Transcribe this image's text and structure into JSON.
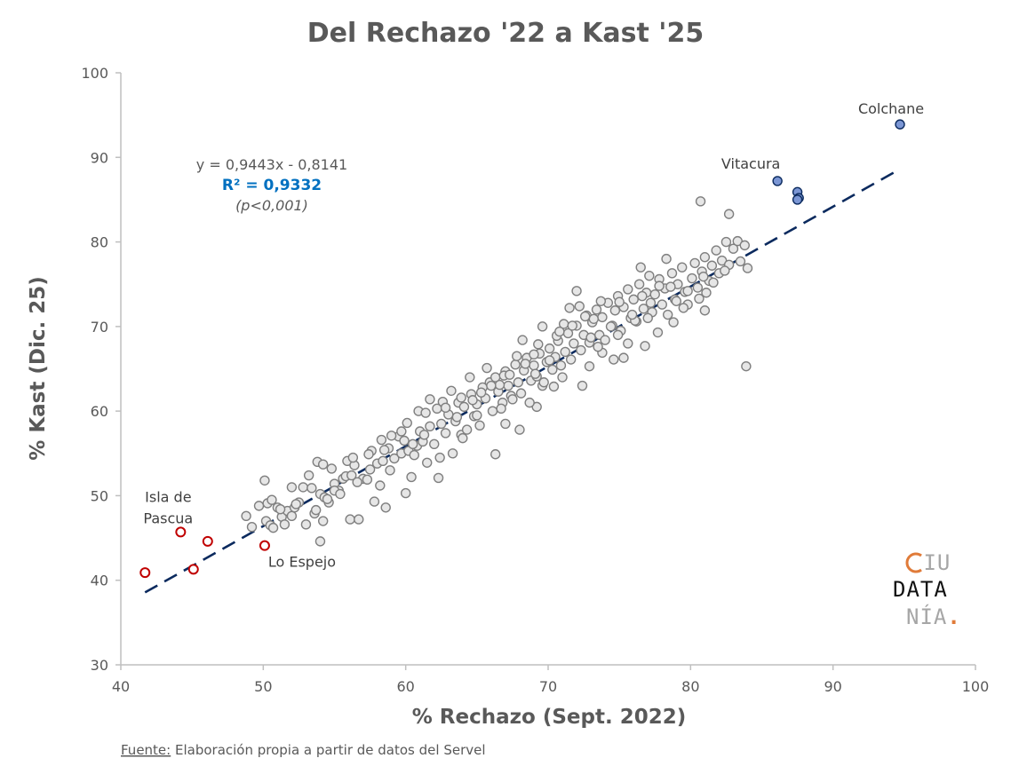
{
  "chart_data": {
    "type": "scatter",
    "title": "Del Rechazo '22 a Kast '25",
    "xlabel": "% Rechazo (Sept. 2022)",
    "ylabel": "% Kast (Dic. 25)",
    "xlim": [
      40,
      100
    ],
    "ylim": [
      30,
      100
    ],
    "xticks": [
      "40",
      "50",
      "60",
      "70",
      "80",
      "90",
      "100"
    ],
    "yticks": [
      "30",
      "40",
      "50",
      "60",
      "70",
      "80",
      "90",
      "100"
    ],
    "grid": false,
    "trendline": {
      "slope": 0.9443,
      "intercept": -0.8141,
      "x_range": [
        41.7,
        94.7
      ],
      "style": "dashed",
      "color": "#0b2a5e",
      "equation_label": "y = 0,9443x - 0,8141",
      "r2_label": "R² = 0,9332",
      "p_label": "(p<0,001)"
    },
    "series": [
      {
        "style": "grey",
        "fill": "#e6e6e6",
        "stroke": "#7f7f7f",
        "points": [
          [
            48.8,
            47.6
          ],
          [
            49.2,
            46.3
          ],
          [
            49.7,
            48.8
          ],
          [
            50.1,
            51.8
          ],
          [
            50.3,
            49.1
          ],
          [
            50.6,
            49.5
          ],
          [
            50.2,
            47.0
          ],
          [
            50.5,
            46.5
          ],
          [
            51.0,
            48.6
          ],
          [
            51.3,
            47.5
          ],
          [
            51.5,
            46.6
          ],
          [
            51.7,
            48.2
          ],
          [
            52.0,
            47.6
          ],
          [
            52.2,
            48.6
          ],
          [
            52.5,
            49.2
          ],
          [
            52.8,
            51.0
          ],
          [
            52.3,
            49.0
          ],
          [
            53.0,
            46.6
          ],
          [
            53.4,
            50.9
          ],
          [
            53.6,
            47.9
          ],
          [
            53.8,
            54.0
          ],
          [
            54.0,
            50.2
          ],
          [
            54.3,
            49.8
          ],
          [
            54.2,
            47.0
          ],
          [
            54.0,
            44.6
          ],
          [
            54.6,
            49.2
          ],
          [
            54.8,
            53.2
          ],
          [
            55.0,
            51.4
          ],
          [
            55.3,
            50.6
          ],
          [
            55.6,
            52.0
          ],
          [
            55.9,
            54.1
          ],
          [
            56.1,
            47.2
          ],
          [
            56.4,
            53.6
          ],
          [
            56.7,
            47.2
          ],
          [
            57.0,
            52.0
          ],
          [
            57.3,
            51.9
          ],
          [
            57.6,
            55.3
          ],
          [
            57.8,
            49.3
          ],
          [
            58.0,
            53.8
          ],
          [
            58.2,
            51.2
          ],
          [
            58.4,
            54.1
          ],
          [
            58.6,
            48.6
          ],
          [
            58.9,
            53.0
          ],
          [
            59.2,
            54.4
          ],
          [
            59.5,
            57.0
          ],
          [
            59.7,
            55.0
          ],
          [
            60.0,
            50.3
          ],
          [
            60.2,
            55.3
          ],
          [
            60.4,
            52.2
          ],
          [
            60.6,
            54.8
          ],
          [
            60.8,
            55.9
          ],
          [
            61.0,
            57.6
          ],
          [
            61.2,
            56.4
          ],
          [
            61.5,
            53.9
          ],
          [
            61.7,
            58.2
          ],
          [
            62.0,
            56.1
          ],
          [
            62.2,
            60.3
          ],
          [
            62.4,
            54.5
          ],
          [
            62.6,
            61.1
          ],
          [
            62.8,
            57.4
          ],
          [
            63.0,
            59.6
          ],
          [
            63.3,
            55.0
          ],
          [
            63.5,
            58.8
          ],
          [
            63.7,
            61.0
          ],
          [
            63.9,
            57.2
          ],
          [
            64.1,
            60.5
          ],
          [
            64.3,
            57.8
          ],
          [
            64.6,
            62.0
          ],
          [
            64.8,
            59.4
          ],
          [
            65.0,
            60.8
          ],
          [
            65.2,
            58.3
          ],
          [
            65.4,
            62.8
          ],
          [
            65.6,
            61.5
          ],
          [
            65.9,
            63.4
          ],
          [
            66.1,
            60.0
          ],
          [
            66.3,
            64.0
          ],
          [
            66.5,
            62.3
          ],
          [
            66.8,
            61.0
          ],
          [
            67.0,
            64.7
          ],
          [
            67.2,
            63.0
          ],
          [
            67.4,
            61.8
          ],
          [
            67.7,
            65.5
          ],
          [
            67.9,
            63.4
          ],
          [
            68.1,
            62.1
          ],
          [
            68.3,
            64.8
          ],
          [
            68.5,
            66.3
          ],
          [
            68.8,
            63.6
          ],
          [
            69.0,
            65.4
          ],
          [
            69.2,
            64.1
          ],
          [
            69.4,
            66.8
          ],
          [
            69.6,
            63.0
          ],
          [
            69.9,
            65.8
          ],
          [
            70.1,
            67.4
          ],
          [
            70.3,
            64.9
          ],
          [
            70.5,
            66.4
          ],
          [
            70.7,
            68.3
          ],
          [
            70.9,
            65.4
          ],
          [
            71.2,
            67.0
          ],
          [
            71.4,
            69.2
          ],
          [
            71.6,
            66.1
          ],
          [
            71.8,
            68.0
          ],
          [
            72.0,
            70.1
          ],
          [
            72.3,
            67.2
          ],
          [
            72.5,
            69.0
          ],
          [
            72.7,
            71.3
          ],
          [
            72.9,
            68.1
          ],
          [
            73.1,
            70.5
          ],
          [
            73.4,
            72.0
          ],
          [
            73.6,
            69.0
          ],
          [
            73.8,
            71.1
          ],
          [
            74.0,
            68.4
          ],
          [
            74.2,
            72.8
          ],
          [
            74.5,
            70.1
          ],
          [
            74.7,
            71.9
          ],
          [
            74.9,
            73.6
          ],
          [
            75.1,
            69.5
          ],
          [
            75.3,
            72.3
          ],
          [
            75.6,
            74.4
          ],
          [
            75.8,
            71.0
          ],
          [
            76.0,
            73.2
          ],
          [
            76.2,
            70.6
          ],
          [
            76.4,
            75.0
          ],
          [
            76.7,
            72.1
          ],
          [
            76.9,
            74.0
          ],
          [
            77.1,
            76.0
          ],
          [
            77.3,
            71.7
          ],
          [
            77.5,
            73.8
          ],
          [
            77.8,
            75.6
          ],
          [
            78.0,
            72.6
          ],
          [
            78.2,
            74.5
          ],
          [
            78.4,
            71.4
          ],
          [
            78.7,
            76.3
          ],
          [
            78.9,
            73.2
          ],
          [
            79.1,
            75.0
          ],
          [
            79.4,
            77.0
          ],
          [
            79.6,
            74.1
          ],
          [
            79.8,
            72.6
          ],
          [
            80.1,
            75.7
          ],
          [
            80.3,
            77.5
          ],
          [
            80.5,
            74.6
          ],
          [
            80.8,
            76.5
          ],
          [
            81.0,
            78.2
          ],
          [
            81.3,
            75.4
          ],
          [
            81.5,
            77.2
          ],
          [
            81.8,
            79.0
          ],
          [
            82.0,
            76.3
          ],
          [
            82.2,
            77.8
          ],
          [
            82.5,
            80.0
          ],
          [
            82.7,
            77.3
          ],
          [
            83.0,
            79.2
          ],
          [
            83.3,
            80.1
          ],
          [
            83.5,
            77.7
          ],
          [
            83.8,
            79.6
          ],
          [
            84.0,
            76.9
          ],
          [
            80.7,
            84.8
          ],
          [
            82.7,
            83.3
          ],
          [
            83.9,
            65.3
          ],
          [
            81.0,
            71.9
          ],
          [
            79.0,
            73.0
          ],
          [
            77.0,
            71.0
          ],
          [
            76.5,
            77.0
          ],
          [
            78.3,
            78.0
          ],
          [
            75.3,
            66.3
          ],
          [
            73.8,
            66.9
          ],
          [
            72.4,
            63.0
          ],
          [
            71.5,
            72.2
          ],
          [
            72.0,
            74.2
          ],
          [
            69.6,
            70.0
          ],
          [
            68.2,
            68.4
          ],
          [
            67.0,
            58.5
          ],
          [
            68.0,
            57.8
          ],
          [
            66.3,
            54.9
          ],
          [
            62.3,
            52.1
          ],
          [
            60.5,
            56.1
          ],
          [
            59.0,
            57.1
          ],
          [
            58.3,
            56.6
          ],
          [
            56.3,
            54.5
          ],
          [
            55.8,
            52.3
          ],
          [
            54.2,
            53.7
          ],
          [
            53.2,
            52.4
          ],
          [
            52.0,
            51.0
          ],
          [
            51.2,
            48.4
          ],
          [
            50.7,
            46.2
          ],
          [
            64.0,
            56.8
          ],
          [
            65.0,
            59.5
          ],
          [
            66.7,
            60.3
          ],
          [
            69.2,
            60.5
          ],
          [
            70.4,
            62.9
          ],
          [
            69.7,
            63.4
          ],
          [
            72.9,
            65.3
          ],
          [
            74.6,
            66.1
          ],
          [
            71.0,
            64.0
          ],
          [
            73.5,
            67.6
          ],
          [
            75.6,
            68.0
          ],
          [
            76.8,
            67.7
          ],
          [
            77.7,
            69.3
          ],
          [
            78.8,
            70.5
          ],
          [
            79.5,
            72.2
          ],
          [
            80.6,
            73.3
          ],
          [
            81.1,
            74.0
          ],
          [
            81.6,
            75.2
          ],
          [
            82.4,
            76.6
          ],
          [
            77.8,
            74.8
          ],
          [
            76.1,
            70.7
          ],
          [
            74.9,
            69.0
          ],
          [
            73.2,
            70.9
          ],
          [
            72.2,
            72.4
          ],
          [
            71.1,
            70.3
          ],
          [
            70.1,
            66.0
          ],
          [
            69.1,
            64.4
          ],
          [
            68.7,
            61.0
          ],
          [
            67.5,
            61.4
          ],
          [
            66.6,
            63.1
          ],
          [
            65.7,
            65.1
          ],
          [
            64.5,
            64.0
          ],
          [
            63.2,
            62.4
          ],
          [
            61.7,
            61.4
          ],
          [
            60.9,
            60.0
          ],
          [
            59.7,
            57.6
          ],
          [
            58.8,
            55.6
          ],
          [
            57.4,
            54.9
          ],
          [
            56.2,
            52.4
          ],
          [
            55.0,
            50.6
          ],
          [
            60.1,
            58.6
          ],
          [
            61.4,
            59.8
          ],
          [
            62.8,
            60.4
          ],
          [
            63.9,
            61.6
          ],
          [
            65.3,
            62.2
          ],
          [
            66.9,
            64.2
          ],
          [
            67.8,
            66.5
          ],
          [
            69.0,
            66.7
          ],
          [
            70.6,
            68.9
          ],
          [
            71.7,
            70.1
          ],
          [
            73.0,
            68.7
          ],
          [
            74.4,
            70.0
          ],
          [
            75.9,
            71.4
          ],
          [
            77.2,
            72.8
          ],
          [
            78.6,
            74.7
          ],
          [
            79.8,
            74.2
          ],
          [
            80.9,
            75.9
          ],
          [
            76.6,
            73.6
          ],
          [
            75.0,
            72.9
          ],
          [
            73.7,
            73.0
          ],
          [
            72.6,
            71.2
          ],
          [
            70.8,
            69.4
          ],
          [
            69.3,
            67.9
          ],
          [
            68.4,
            65.6
          ],
          [
            67.3,
            64.3
          ],
          [
            66.0,
            63.0
          ],
          [
            64.7,
            61.3
          ],
          [
            63.6,
            59.3
          ],
          [
            62.5,
            58.5
          ],
          [
            61.3,
            57.2
          ],
          [
            59.9,
            56.5
          ],
          [
            58.5,
            55.4
          ],
          [
            57.5,
            53.1
          ],
          [
            56.6,
            51.6
          ],
          [
            55.4,
            50.2
          ],
          [
            54.5,
            49.6
          ],
          [
            53.7,
            48.3
          ]
        ]
      },
      {
        "style": "blue",
        "fill": "#7b96d4",
        "stroke": "#0b2a5e",
        "points": [
          [
            94.7,
            93.9
          ],
          [
            86.1,
            87.2
          ],
          [
            87.5,
            85.9
          ],
          [
            87.6,
            85.2
          ],
          [
            87.5,
            85.0
          ]
        ]
      },
      {
        "style": "red",
        "fill": "#ffffff",
        "stroke": "#c00000",
        "points": [
          [
            41.7,
            40.9
          ],
          [
            44.2,
            45.7
          ],
          [
            45.1,
            41.3
          ],
          [
            46.1,
            44.6
          ],
          [
            50.1,
            44.1
          ]
        ]
      }
    ],
    "annotations": [
      {
        "text": "Colchane",
        "x": 94.7,
        "y": 93.9,
        "pos": "above"
      },
      {
        "text": "Vitacura",
        "x": 86.1,
        "y": 87.2,
        "pos": "above-left"
      },
      {
        "text": "Isla  de",
        "x": 44.2,
        "y": 45.7,
        "pos": "above-left-1"
      },
      {
        "text": "Pascua",
        "x": 44.2,
        "y": 45.7,
        "pos": "above-left-2"
      },
      {
        "text": "Lo Espejo",
        "x": 50.1,
        "y": 44.1,
        "pos": "below-right"
      }
    ]
  },
  "source": {
    "label": "Fuente:",
    "text": " Elaboración propia a partir de datos del Servel"
  },
  "logo": {
    "line1": "CIU",
    "line2": "DATA",
    "line3": "NÍA.",
    "accent_orange": "#e07b39",
    "accent_blue": "#3aa6c9"
  }
}
